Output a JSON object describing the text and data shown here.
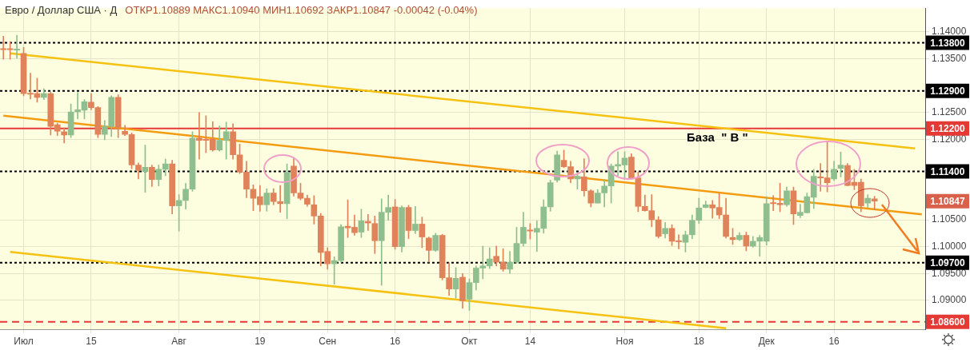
{
  "chart_data": {
    "type": "candlestick",
    "title": "Евро / Доллар США · Д",
    "subtitle": "ОТКР1.10889 МАКС1.10940 МИН1.10692 ЗАКР1.10847 -0.00042 (-0.04%)",
    "categories": [
      null,
      null,
      null,
      "Июл",
      null,
      null,
      null,
      null,
      null,
      null,
      null,
      null,
      null,
      "15",
      null,
      null,
      null,
      null,
      null,
      null,
      null,
      null,
      null,
      null,
      null,
      null,
      "Авг",
      null,
      null,
      null,
      null,
      null,
      null,
      null,
      null,
      null,
      null,
      null,
      "19",
      null,
      null,
      null,
      null,
      null,
      null,
      null,
      null,
      null,
      "Сен",
      null,
      null,
      null,
      null,
      null,
      null,
      null,
      null,
      null,
      "16",
      null,
      null,
      null,
      null,
      null,
      null,
      null,
      null,
      null,
      null,
      "Окт",
      null,
      null,
      null,
      null,
      null,
      null,
      null,
      null,
      "14",
      null,
      null,
      null,
      null,
      null,
      null,
      null,
      null,
      null,
      null,
      null,
      null,
      null,
      "Ноя",
      null,
      null,
      null,
      null,
      null,
      null,
      null,
      null,
      null,
      null,
      "18",
      null,
      null,
      null,
      null,
      null,
      null,
      null,
      null,
      null,
      "Дек",
      null,
      null,
      null,
      null,
      null,
      null,
      null,
      null,
      null,
      "16",
      null,
      null,
      null,
      null,
      null,
      null,
      null,
      null,
      null,
      null,
      null,
      null,
      null
    ],
    "ohlc": [
      [
        1.1369,
        1.1392,
        1.1349,
        1.1367
      ],
      [
        1.1369,
        1.1382,
        1.1349,
        1.1367
      ],
      [
        1.1366,
        1.1394,
        1.1351,
        1.1368
      ],
      [
        1.136,
        1.1371,
        1.1281,
        1.1285
      ],
      [
        1.1286,
        1.1323,
        1.1275,
        1.1284
      ],
      [
        1.1285,
        1.1314,
        1.1269,
        1.1278
      ],
      [
        1.1278,
        1.1294,
        1.1274,
        1.1285
      ],
      [
        1.1285,
        1.1288,
        1.1208,
        1.1224
      ],
      [
        1.1227,
        1.123,
        1.1207,
        1.1215
      ],
      [
        1.1214,
        1.1221,
        1.1193,
        1.1208
      ],
      [
        1.1208,
        1.1266,
        1.1203,
        1.1251
      ],
      [
        1.1251,
        1.1287,
        1.1238,
        1.1255
      ],
      [
        1.1254,
        1.1274,
        1.1238,
        1.127
      ],
      [
        1.1269,
        1.1285,
        1.1255,
        1.1259
      ],
      [
        1.1259,
        1.1261,
        1.1203,
        1.1209
      ],
      [
        1.1209,
        1.1235,
        1.1199,
        1.1224
      ],
      [
        1.1224,
        1.1281,
        1.1205,
        1.1278
      ],
      [
        1.1278,
        1.1283,
        1.1203,
        1.1222
      ],
      [
        1.1215,
        1.1226,
        1.1207,
        1.1209
      ],
      [
        1.1209,
        1.1212,
        1.1145,
        1.1152
      ],
      [
        1.1152,
        1.1156,
        1.1126,
        1.1142
      ],
      [
        1.114,
        1.1189,
        1.1101,
        1.1148
      ],
      [
        1.1148,
        1.1152,
        1.1112,
        1.1125
      ],
      [
        1.1125,
        1.1152,
        1.1113,
        1.1144
      ],
      [
        1.1144,
        1.1163,
        1.1132,
        1.1154
      ],
      [
        1.1154,
        1.1161,
        1.1061,
        1.1076
      ],
      [
        1.1076,
        1.1097,
        1.1029,
        1.1086
      ],
      [
        1.1086,
        1.1118,
        1.107,
        1.1107
      ],
      [
        1.1107,
        1.1214,
        1.1103,
        1.1202
      ],
      [
        1.1202,
        1.125,
        1.1163,
        1.1198
      ],
      [
        1.12,
        1.1244,
        1.1175,
        1.1198
      ],
      [
        1.12,
        1.1233,
        1.1178,
        1.118
      ],
      [
        1.118,
        1.1225,
        1.1178,
        1.1198
      ],
      [
        1.1198,
        1.1232,
        1.1163,
        1.1214
      ],
      [
        1.1214,
        1.1229,
        1.1163,
        1.1171
      ],
      [
        1.1171,
        1.1191,
        1.1136,
        1.1139
      ],
      [
        1.1139,
        1.1159,
        1.1091,
        1.1107
      ],
      [
        1.1107,
        1.1115,
        1.1067,
        1.109
      ],
      [
        1.1093,
        1.1114,
        1.1066,
        1.1078
      ],
      [
        1.1078,
        1.1108,
        1.1066,
        1.11
      ],
      [
        1.11,
        1.1108,
        1.1078,
        1.1084
      ],
      [
        1.1084,
        1.1114,
        1.1064,
        1.108
      ],
      [
        1.108,
        1.1154,
        1.1052,
        1.1138
      ],
      [
        1.115,
        1.1166,
        1.1094,
        1.11
      ],
      [
        1.11,
        1.1118,
        1.1087,
        1.109
      ],
      [
        1.109,
        1.1096,
        1.1075,
        1.1079
      ],
      [
        1.1078,
        1.1095,
        1.1042,
        1.1057
      ],
      [
        1.1057,
        1.1062,
        1.0964,
        1.0989
      ],
      [
        1.0991,
        1.0998,
        1.0958,
        1.0968
      ],
      [
        1.0968,
        1.0981,
        1.093,
        1.0974
      ],
      [
        1.0974,
        1.1041,
        1.0971,
        1.1037
      ],
      [
        1.1038,
        1.1087,
        1.1017,
        1.1035
      ],
      [
        1.1036,
        1.1059,
        1.1021,
        1.1026
      ],
      [
        1.1027,
        1.107,
        1.1017,
        1.1048
      ],
      [
        1.1047,
        1.106,
        1.103,
        1.1044
      ],
      [
        1.1043,
        1.1057,
        1.0987,
        1.1011
      ],
      [
        1.1011,
        1.1089,
        1.0928,
        1.1064
      ],
      [
        1.1064,
        1.1096,
        1.1049,
        1.1073
      ],
      [
        1.1074,
        1.1088,
        1.0995,
        1.1
      ],
      [
        1.1,
        1.1076,
        1.099,
        1.1073
      ],
      [
        1.1073,
        1.1077,
        1.1015,
        1.103
      ],
      [
        1.103,
        1.1075,
        1.1024,
        1.1042
      ],
      [
        1.1042,
        1.1055,
        1.0998,
        1.1018
      ],
      [
        1.1016,
        1.1018,
        1.0971,
        1.0993
      ],
      [
        1.0993,
        1.1025,
        1.0991,
        1.1021
      ],
      [
        1.1021,
        1.1023,
        1.0938,
        1.0942
      ],
      [
        1.0942,
        1.097,
        1.0909,
        1.0921
      ],
      [
        1.0921,
        1.0961,
        1.0904,
        1.0941
      ],
      [
        1.0943,
        1.095,
        1.0885,
        1.0899
      ],
      [
        1.0902,
        1.094,
        1.0881,
        1.0933
      ],
      [
        1.0933,
        1.0964,
        1.0919,
        1.096
      ],
      [
        1.096,
        1.1001,
        1.094,
        1.0964
      ],
      [
        1.0964,
        1.0998,
        1.0959,
        1.0977
      ],
      [
        1.0982,
        1.1001,
        1.0964,
        1.0971
      ],
      [
        1.0971,
        1.0996,
        1.0954,
        1.0958
      ],
      [
        1.0958,
        1.0991,
        1.095,
        1.0971
      ],
      [
        1.0971,
        1.1036,
        1.0969,
        1.1006
      ],
      [
        1.1006,
        1.1064,
        1.1001,
        1.1036
      ],
      [
        1.1031,
        1.1043,
        1.1014,
        1.1029
      ],
      [
        1.1027,
        1.1048,
        1.0991,
        1.1034
      ],
      [
        1.1034,
        1.1087,
        1.1025,
        1.1074
      ],
      [
        1.1074,
        1.1124,
        1.1066,
        1.1119
      ],
      [
        1.1124,
        1.1178,
        1.112,
        1.1171
      ],
      [
        1.1161,
        1.118,
        1.1147,
        1.1149
      ],
      [
        1.1149,
        1.1159,
        1.1119,
        1.1126
      ],
      [
        1.1126,
        1.1137,
        1.1107,
        1.1131
      ],
      [
        1.113,
        1.1164,
        1.1094,
        1.1104
      ],
      [
        1.1104,
        1.1106,
        1.1074,
        1.1081
      ],
      [
        1.1081,
        1.1106,
        1.1081,
        1.11
      ],
      [
        1.11,
        1.1125,
        1.1074,
        1.1113
      ],
      [
        1.1113,
        1.1154,
        1.1081,
        1.115
      ],
      [
        1.115,
        1.1177,
        1.1132,
        1.1153
      ],
      [
        1.1152,
        1.1177,
        1.1128,
        1.1165
      ],
      [
        1.1167,
        1.1173,
        1.1126,
        1.1128
      ],
      [
        1.1128,
        1.1139,
        1.1065,
        1.1075
      ],
      [
        1.1075,
        1.1096,
        1.1066,
        1.1067
      ],
      [
        1.1067,
        1.1097,
        1.1037,
        1.105
      ],
      [
        1.105,
        1.1056,
        1.1016,
        1.1019
      ],
      [
        1.1024,
        1.1045,
        1.1016,
        1.1034
      ],
      [
        1.1034,
        1.1041,
        1.1002,
        1.101
      ],
      [
        1.1011,
        1.1022,
        1.0996,
        1.1009
      ],
      [
        1.1008,
        1.1029,
        1.099,
        1.1022
      ],
      [
        1.1022,
        1.1059,
        1.1015,
        1.1049
      ],
      [
        1.1049,
        1.109,
        1.1043,
        1.1072
      ],
      [
        1.1073,
        1.1085,
        1.1072,
        1.1078
      ],
      [
        1.1078,
        1.1086,
        1.1053,
        1.1072
      ],
      [
        1.1073,
        1.1099,
        1.1052,
        1.1059
      ],
      [
        1.1059,
        1.109,
        1.1016,
        1.1019
      ],
      [
        1.1017,
        1.1034,
        1.1004,
        1.1013
      ],
      [
        1.1013,
        1.1026,
        1.1011,
        1.1021
      ],
      [
        1.1021,
        1.1027,
        1.0992,
        1.1001
      ],
      [
        1.1001,
        1.1019,
        1.0999,
        1.101
      ],
      [
        1.101,
        1.1021,
        1.0982,
        1.1017
      ],
      [
        1.101,
        1.1093,
        1.1003,
        1.108
      ],
      [
        1.1082,
        1.1095,
        1.1067,
        1.108
      ],
      [
        1.1081,
        1.1118,
        1.1065,
        1.1078
      ],
      [
        1.1078,
        1.1111,
        1.1075,
        1.1104
      ],
      [
        1.1104,
        1.1111,
        1.1041,
        1.1061
      ],
      [
        1.1058,
        1.1079,
        1.1054,
        1.1064
      ],
      [
        1.1063,
        1.11,
        1.1063,
        1.1093
      ],
      [
        1.1092,
        1.1144,
        1.1071,
        1.1131
      ],
      [
        1.113,
        1.1155,
        1.1103,
        1.1128
      ],
      [
        1.1128,
        1.1197,
        1.1102,
        1.1119
      ],
      [
        1.1126,
        1.1159,
        1.1123,
        1.1144
      ],
      [
        1.1146,
        1.1176,
        1.113,
        1.1152
      ],
      [
        1.1151,
        1.1155,
        1.1113,
        1.1114
      ],
      [
        1.112,
        1.1144,
        1.1106,
        1.1114
      ],
      [
        1.112,
        1.1126,
        1.1065,
        1.1076
      ],
      [
        1.1081,
        1.1097,
        1.1073,
        1.109
      ],
      [
        1.10889,
        1.1094,
        1.10692,
        1.10847
      ],
      null,
      null,
      null,
      null,
      null,
      null,
      null
    ],
    "colors": [
      "#e0825a",
      "#e0825a",
      "#8fbf8f",
      "#e0825a",
      "#e0825a",
      "#e0825a",
      "#8fbf8f",
      "#e0825a",
      "#e0825a",
      "#e0825a",
      "#8fbf8f",
      "#8fbf8f",
      "#8fbf8f",
      "#e0825a",
      "#e0825a",
      "#8fbf8f",
      "#8fbf8f",
      "#e0825a",
      "#e0825a",
      "#e0825a",
      "#e0825a",
      "#8fbf8f",
      "#e0825a",
      "#8fbf8f",
      "#8fbf8f",
      "#e0825a",
      "#8fbf8f",
      "#8fbf8f",
      "#8fbf8f",
      "#e0825a",
      "#e0825a",
      "#e0825a",
      "#8fbf8f",
      "#8fbf8f",
      "#e0825a",
      "#e0825a",
      "#e0825a",
      "#e0825a",
      "#e0825a",
      "#8fbf8f",
      "#e0825a",
      "#e0825a",
      "#8fbf8f",
      "#e0825a",
      "#e0825a",
      "#e0825a",
      "#e0825a",
      "#e0825a",
      "#e0825a",
      "#8fbf8f",
      "#8fbf8f",
      "#e0825a",
      "#e0825a",
      "#8fbf8f",
      "#e0825a",
      "#e0825a",
      "#8fbf8f",
      "#8fbf8f",
      "#e0825a",
      "#8fbf8f",
      "#e0825a",
      "#8fbf8f",
      "#e0825a",
      "#e0825a",
      "#8fbf8f",
      "#e0825a",
      "#e0825a",
      "#8fbf8f",
      "#e0825a",
      "#8fbf8f",
      "#8fbf8f",
      "#8fbf8f",
      "#8fbf8f",
      "#e0825a",
      "#e0825a",
      "#8fbf8f",
      "#8fbf8f",
      "#8fbf8f",
      "#e0825a",
      "#8fbf8f",
      "#8fbf8f",
      "#8fbf8f",
      "#8fbf8f",
      "#e0825a",
      "#e0825a",
      "#8fbf8f",
      "#e0825a",
      "#e0825a",
      "#8fbf8f",
      "#8fbf8f",
      "#8fbf8f",
      "#8fbf8f",
      "#8fbf8f",
      "#e0825a",
      "#e0825a",
      "#e0825a",
      "#e0825a",
      "#e0825a",
      "#8fbf8f",
      "#e0825a",
      "#e0825a",
      "#8fbf8f",
      "#8fbf8f",
      "#8fbf8f",
      "#8fbf8f",
      "#e0825a",
      "#e0825a",
      "#e0825a",
      "#e0825a",
      "#8fbf8f",
      "#e0825a",
      "#8fbf8f",
      "#8fbf8f",
      "#8fbf8f",
      "#e0825a",
      "#e0825a",
      "#8fbf8f",
      "#e0825a",
      "#8fbf8f",
      "#8fbf8f",
      "#8fbf8f",
      "#e0825a",
      "#e0825a",
      "#8fbf8f",
      "#8fbf8f",
      "#e0825a",
      "#e0825a",
      "#e0825a",
      "#8fbf8f",
      "#e0825a",
      null,
      null,
      null,
      null,
      null,
      null,
      null
    ],
    "series": [
      {
        "type": "line",
        "color": "#f5c211",
        "values": [
          null,
          1.136,
          null,
          null,
          null,
          null,
          null,
          null,
          null,
          null,
          null,
          null,
          null,
          null,
          null,
          null,
          null,
          null,
          null,
          null,
          null,
          null,
          null,
          null,
          null,
          null,
          null,
          null,
          null,
          null,
          null,
          null,
          null,
          null,
          null,
          null,
          null,
          null,
          null,
          null,
          null,
          null,
          null,
          null,
          null,
          null,
          null,
          null,
          null,
          null,
          null,
          null,
          null,
          null,
          null,
          null,
          null,
          null,
          null,
          null,
          null,
          null,
          null,
          null,
          null,
          null,
          null,
          null,
          null,
          null,
          null,
          null,
          null,
          null,
          null,
          null,
          null,
          null,
          null,
          null,
          null,
          null,
          null,
          null,
          null,
          null,
          null,
          null,
          null,
          null,
          null,
          null,
          null,
          null,
          null,
          null,
          null,
          null,
          null,
          null,
          null,
          null,
          null,
          null,
          null,
          null,
          null,
          null,
          null,
          null,
          null,
          null,
          null,
          null,
          null,
          null,
          null,
          null,
          null,
          null,
          null,
          null,
          null,
          null,
          null,
          null,
          null,
          null,
          null,
          null,
          null,
          null,
          null,
          null,
          null,
          1.1183,
          null
        ]
      },
      {
        "type": "line",
        "color": "#f39c12",
        "values": [
          1.1244,
          null,
          null,
          null,
          null,
          null,
          null,
          null,
          null,
          null,
          null,
          null,
          null,
          null,
          null,
          null,
          null,
          null,
          null,
          null,
          null,
          null,
          null,
          null,
          null,
          null,
          null,
          null,
          null,
          null,
          null,
          null,
          null,
          null,
          null,
          null,
          null,
          null,
          null,
          null,
          null,
          null,
          null,
          null,
          null,
          null,
          null,
          null,
          null,
          null,
          null,
          null,
          null,
          null,
          null,
          null,
          null,
          null,
          null,
          null,
          null,
          null,
          null,
          null,
          null,
          null,
          null,
          null,
          null,
          null,
          null,
          null,
          null,
          null,
          null,
          null,
          null,
          null,
          null,
          null,
          null,
          null,
          null,
          null,
          null,
          null,
          null,
          null,
          null,
          null,
          null,
          null,
          null,
          null,
          null,
          null,
          null,
          null,
          null,
          null,
          null,
          null,
          null,
          null,
          null,
          null,
          null,
          null,
          null,
          null,
          null,
          null,
          null,
          null,
          null,
          null,
          null,
          null,
          null,
          null,
          null,
          null,
          null,
          null,
          null,
          null,
          null,
          null,
          null,
          null,
          null,
          null,
          null,
          null,
          null,
          null,
          1.106
        ]
      },
      {
        "type": "line",
        "color": "#f5c211",
        "values": [
          null,
          1.099,
          null,
          null,
          null,
          null,
          null,
          null,
          null,
          null,
          null,
          null,
          null,
          null,
          null,
          null,
          null,
          null,
          null,
          null,
          null,
          null,
          null,
          null,
          null,
          null,
          null,
          null,
          null,
          null,
          null,
          null,
          null,
          null,
          null,
          null,
          null,
          null,
          null,
          null,
          null,
          null,
          null,
          null,
          null,
          null,
          null,
          null,
          null,
          null,
          null,
          null,
          null,
          null,
          null,
          null,
          null,
          null,
          null,
          null,
          null,
          null,
          null,
          null,
          null,
          null,
          null,
          null,
          null,
          null,
          null,
          null,
          null,
          null,
          null,
          null,
          null,
          null,
          null,
          null,
          null,
          null,
          null,
          null,
          null,
          null,
          null,
          null,
          null,
          null,
          null,
          null,
          null,
          null,
          null,
          null,
          null,
          null,
          null,
          null,
          null,
          null,
          null,
          null,
          null,
          null,
          null,
          1.0848,
          null,
          null,
          null,
          null,
          null,
          null,
          null,
          null,
          null,
          null,
          null,
          null,
          null,
          null,
          null,
          null,
          null,
          null,
          null,
          null,
          null,
          null,
          null,
          null,
          null,
          null,
          null,
          null,
          null
        ]
      }
    ],
    "ylim": [
      1.08461,
      1.14443
    ],
    "yticks": [
      {
        "value": 1.09,
        "label": "1.09000"
      },
      {
        "value": 1.095,
        "label": "1.09500"
      },
      {
        "value": 1.1,
        "label": "1.10000"
      },
      {
        "value": 1.105,
        "label": "1.10500"
      },
      {
        "value": 1.12,
        "label": "1.12000"
      },
      {
        "value": 1.125,
        "label": "1.12500"
      },
      {
        "value": 1.135,
        "label": "1.13500"
      },
      {
        "value": 1.14,
        "label": "1.14000"
      }
    ],
    "grid": true,
    "ref_lines": [
      {
        "axis": "y",
        "value": 1.138,
        "label": "1.13800",
        "color": "#000000",
        "line_style": "dotted"
      },
      {
        "axis": "y",
        "value": 1.129,
        "label": "1.12900",
        "color": "#000000",
        "line_style": "dotted"
      },
      {
        "axis": "y",
        "value": 1.122,
        "label": "1.12200",
        "color": "#e53935",
        "line_style": "solid"
      },
      {
        "axis": "y",
        "value": 1.114,
        "label": "1.11400",
        "color": "#000000",
        "line_style": "dotted"
      },
      {
        "axis": "y",
        "value": 1.097,
        "label": "1.09700",
        "color": "#000000",
        "line_style": "dotted"
      },
      {
        "axis": "y",
        "value": 1.086,
        "label": "1.08600",
        "color": "#e53935",
        "line_style": "dashed"
      }
    ],
    "annotations": [
      "База  \" В \"",
      "1.10847"
    ]
  }
}
